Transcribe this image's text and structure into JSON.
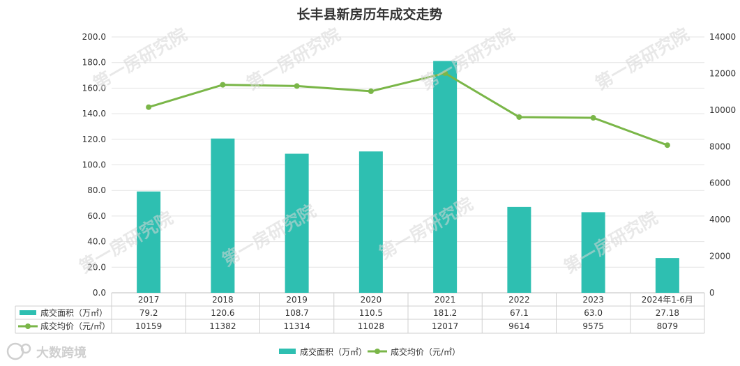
{
  "chart_data": {
    "type": "bar",
    "title": "长丰县新房历年成交走势",
    "categories": [
      "2017",
      "2018",
      "2019",
      "2020",
      "2021",
      "2022",
      "2023",
      "2024年1-6月"
    ],
    "series": [
      {
        "name": "成交面积（万㎡）",
        "type": "bar",
        "axis": "left",
        "color": "#2ebfb1",
        "values": [
          79.2,
          120.6,
          108.7,
          110.5,
          181.2,
          67.1,
          63.0,
          27.18
        ],
        "value_labels": [
          "79.2",
          "120.6",
          "108.7",
          "110.5",
          "181.2",
          "67.1",
          "63.0",
          "27.18"
        ]
      },
      {
        "name": "成交均价（元/㎡）",
        "type": "line",
        "axis": "right",
        "color": "#7ab648",
        "values": [
          10159,
          11382,
          11314,
          11028,
          12017,
          9614,
          9575,
          8079
        ],
        "value_labels": [
          "10159",
          "11382",
          "11314",
          "11028",
          "12017",
          "9614",
          "9575",
          "8079"
        ]
      }
    ],
    "y_left": {
      "min": 0,
      "max": 200,
      "step": 20,
      "tick_labels": [
        "0.0",
        "20.0",
        "40.0",
        "60.0",
        "80.0",
        "100.0",
        "120.0",
        "140.0",
        "160.0",
        "180.0",
        "200.0"
      ]
    },
    "y_right": {
      "min": 0,
      "max": 14000,
      "step": 2000,
      "tick_labels": [
        "0",
        "2000",
        "4000",
        "6000",
        "8000",
        "10000",
        "12000",
        "14000"
      ]
    },
    "grid": true,
    "legend_position": "bottom",
    "data_table": true
  },
  "watermark": {
    "text": "第一房研究院",
    "brand": "大数跨境",
    "brand_logo": "bd-logo-icon"
  }
}
